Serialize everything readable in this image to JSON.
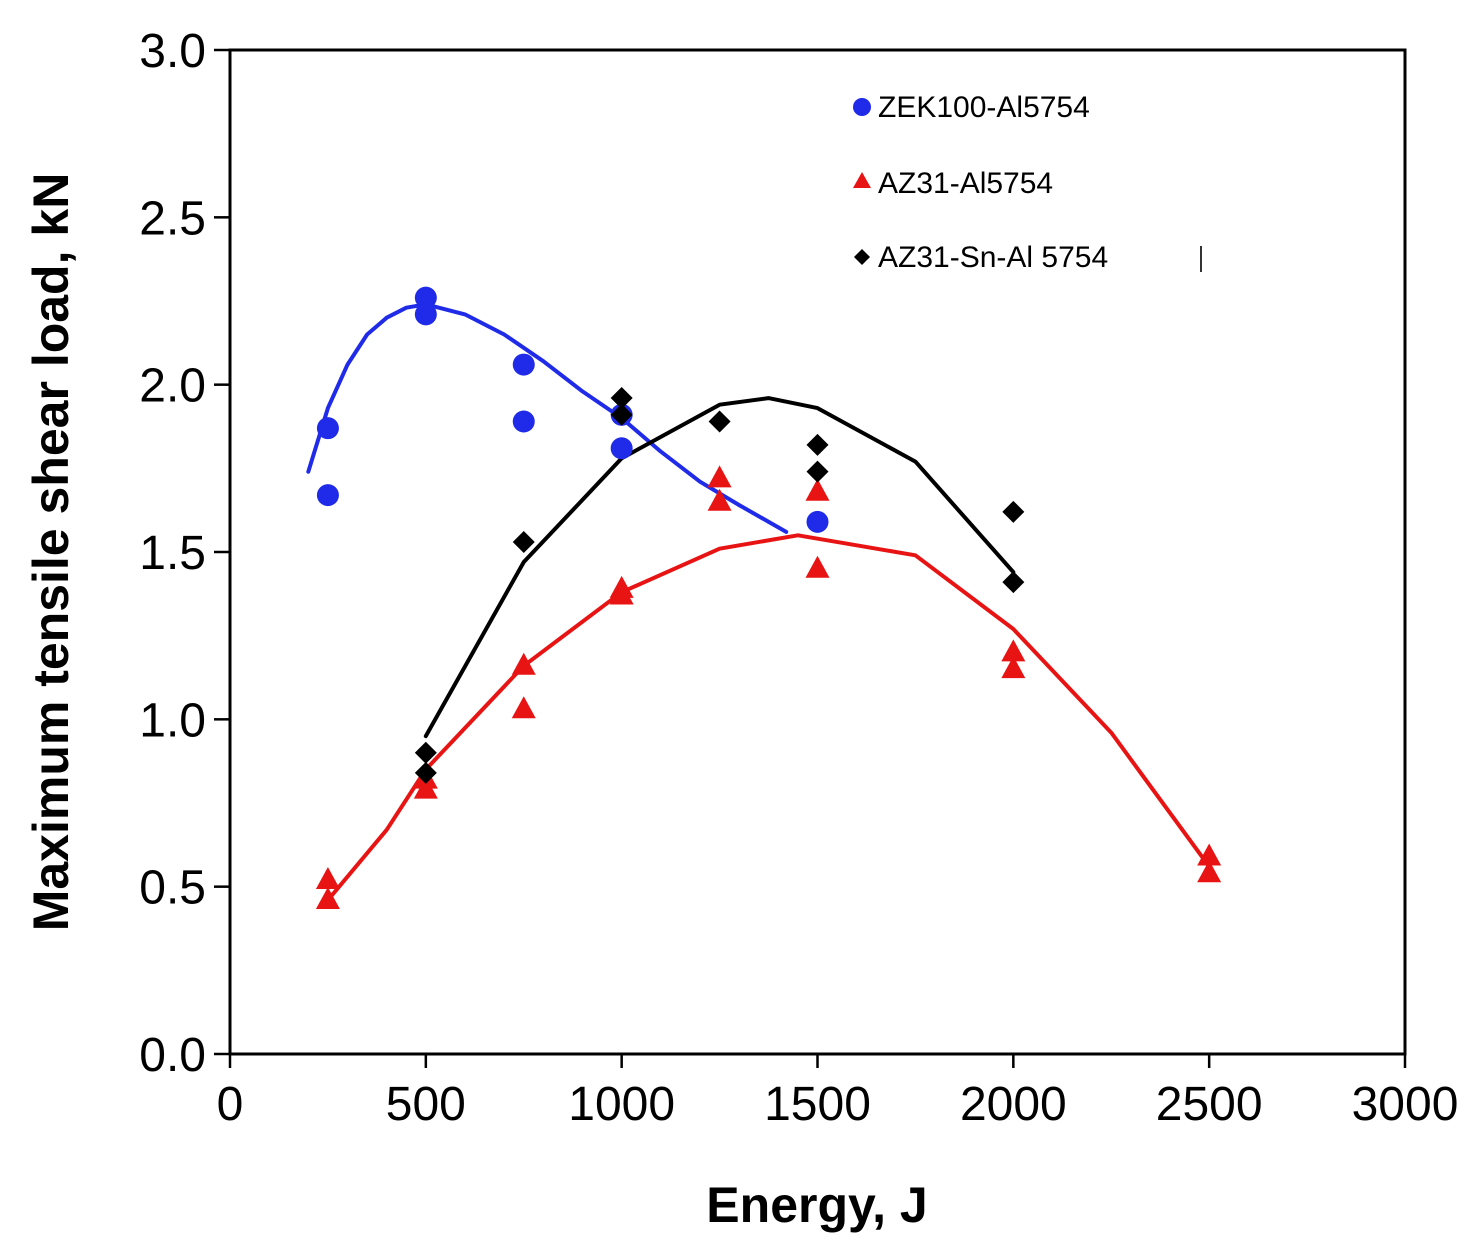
{
  "chart_data": {
    "type": "scatter",
    "title": "",
    "xlabel": "Energy, J",
    "ylabel": "Maximum tensile shear load, kN",
    "xlim": [
      0,
      3000
    ],
    "ylim": [
      0.0,
      3.0
    ],
    "xticks": [
      "0",
      "500",
      "1000",
      "1500",
      "2000",
      "2500",
      "3000"
    ],
    "xtick_values": [
      0,
      500,
      1000,
      1500,
      2000,
      2500,
      3000
    ],
    "yticks": [
      "0.0",
      "0.5",
      "1.0",
      "1.5",
      "2.0",
      "2.5",
      "3.0"
    ],
    "ytick_values": [
      0.0,
      0.5,
      1.0,
      1.5,
      2.0,
      2.5,
      3.0
    ],
    "grid": false,
    "legend_position": "top-right",
    "series": [
      {
        "name": "ZEK100-Al5754",
        "color": "#1f2be8",
        "marker": "circle",
        "points": [
          [
            250,
            1.87
          ],
          [
            250,
            1.67
          ],
          [
            500,
            2.26
          ],
          [
            500,
            2.21
          ],
          [
            750,
            2.06
          ],
          [
            750,
            1.89
          ],
          [
            1000,
            1.91
          ],
          [
            1000,
            1.81
          ],
          [
            1500,
            1.59
          ]
        ],
        "fit": [
          [
            200,
            1.74
          ],
          [
            250,
            1.93
          ],
          [
            300,
            2.06
          ],
          [
            350,
            2.15
          ],
          [
            400,
            2.2
          ],
          [
            450,
            2.23
          ],
          [
            500,
            2.24
          ],
          [
            600,
            2.21
          ],
          [
            700,
            2.15
          ],
          [
            800,
            2.07
          ],
          [
            900,
            1.98
          ],
          [
            1000,
            1.9
          ],
          [
            1100,
            1.8
          ],
          [
            1200,
            1.71
          ],
          [
            1300,
            1.64
          ],
          [
            1420,
            1.56
          ]
        ]
      },
      {
        "name": "AZ31-Al5754",
        "color": "#e81414",
        "marker": "triangle",
        "points": [
          [
            250,
            0.52
          ],
          [
            250,
            0.46
          ],
          [
            500,
            0.82
          ],
          [
            500,
            0.79
          ],
          [
            750,
            1.16
          ],
          [
            750,
            1.03
          ],
          [
            1000,
            1.39
          ],
          [
            1000,
            1.37
          ],
          [
            1250,
            1.72
          ],
          [
            1250,
            1.65
          ],
          [
            1500,
            1.68
          ],
          [
            1500,
            1.45
          ],
          [
            2000,
            1.2
          ],
          [
            2000,
            1.15
          ],
          [
            2500,
            0.59
          ],
          [
            2500,
            0.54
          ]
        ],
        "fit": [
          [
            250,
            0.46
          ],
          [
            400,
            0.67
          ],
          [
            500,
            0.85
          ],
          [
            750,
            1.16
          ],
          [
            1000,
            1.38
          ],
          [
            1250,
            1.51
          ],
          [
            1450,
            1.55
          ],
          [
            1750,
            1.49
          ],
          [
            2000,
            1.27
          ],
          [
            2250,
            0.96
          ],
          [
            2500,
            0.56
          ]
        ]
      },
      {
        "name": "AZ31-Sn-Al 5754",
        "color": "#000000",
        "marker": "diamond",
        "points": [
          [
            500,
            0.9
          ],
          [
            500,
            0.84
          ],
          [
            750,
            1.53
          ],
          [
            1000,
            1.96
          ],
          [
            1000,
            1.91
          ],
          [
            1250,
            1.89
          ],
          [
            1500,
            1.82
          ],
          [
            1500,
            1.74
          ],
          [
            2000,
            1.62
          ],
          [
            2000,
            1.41
          ]
        ],
        "fit": [
          [
            500,
            0.95
          ],
          [
            750,
            1.47
          ],
          [
            1000,
            1.78
          ],
          [
            1250,
            1.94
          ],
          [
            1375,
            1.96
          ],
          [
            1500,
            1.93
          ],
          [
            1750,
            1.77
          ],
          [
            2000,
            1.44
          ]
        ]
      }
    ]
  }
}
